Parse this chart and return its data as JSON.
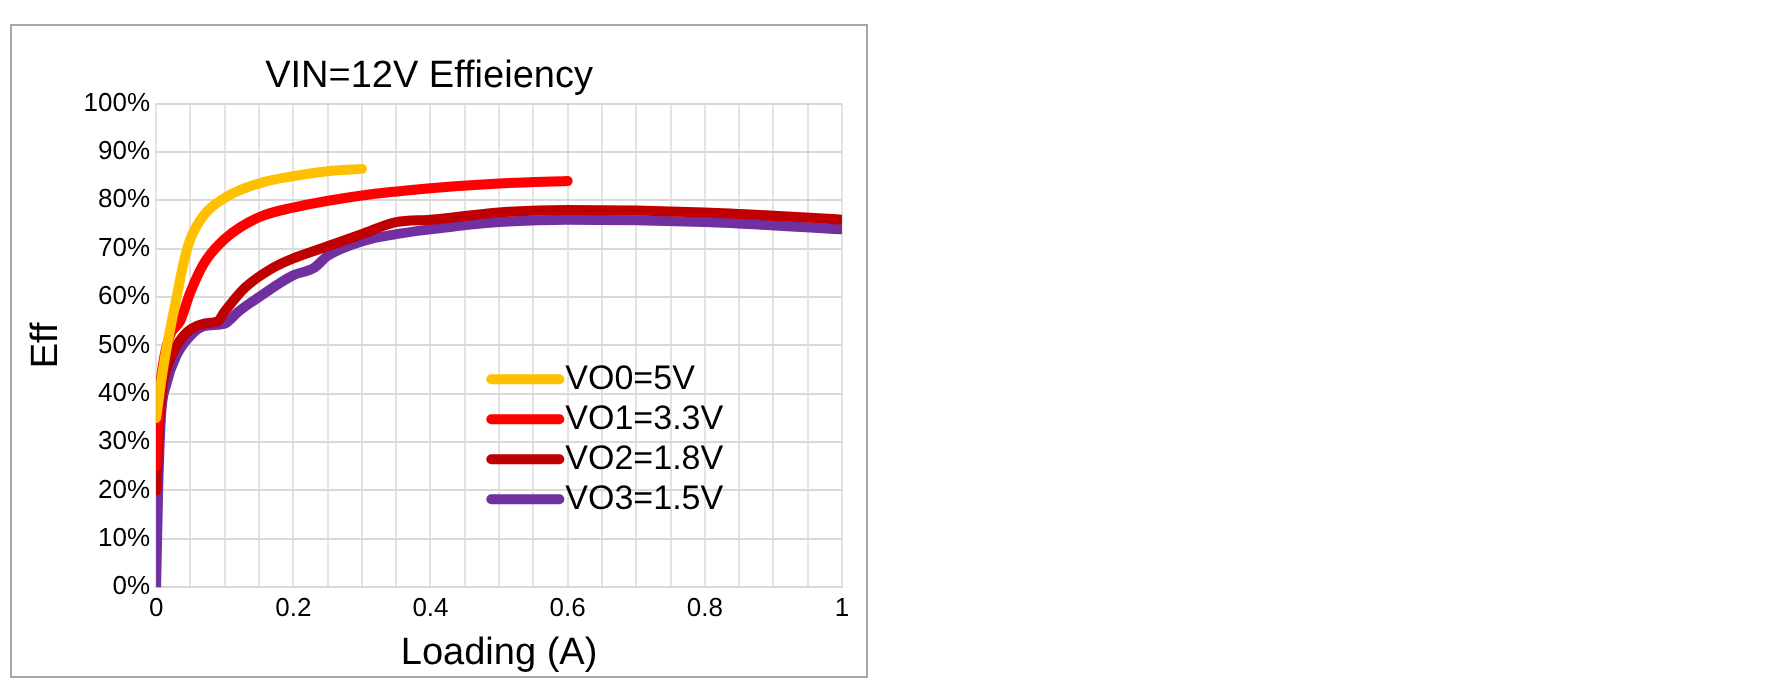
{
  "chart_data": {
    "type": "line",
    "title": "VIN=12V Effieiency",
    "xlabel": "Loading (A)",
    "ylabel": "Eff",
    "xlim": [
      0,
      1
    ],
    "xticks": [
      0,
      {
        "value": 0.05,
        "label": null
      },
      {
        "value": 0.1,
        "label": null
      },
      {
        "value": 0.15,
        "label": null
      },
      0.2,
      {
        "value": 0.25,
        "label": null
      },
      {
        "value": 0.3,
        "label": null
      },
      {
        "value": 0.35,
        "label": null
      },
      0.4,
      {
        "value": 0.45,
        "label": null
      },
      {
        "value": 0.5,
        "label": null
      },
      {
        "value": 0.55,
        "label": null
      },
      0.6,
      {
        "value": 0.65,
        "label": null
      },
      {
        "value": 0.7,
        "label": null
      },
      {
        "value": 0.75,
        "label": null
      },
      0.8,
      {
        "value": 0.85,
        "label": null
      },
      {
        "value": 0.9,
        "label": null
      },
      {
        "value": 0.95,
        "label": null
      },
      1
    ],
    "ylim": [
      0,
      100
    ],
    "yticks": [
      {
        "value": 0,
        "label": "0%"
      },
      {
        "value": 10,
        "label": "10%"
      },
      {
        "value": 20,
        "label": "20%"
      },
      {
        "value": 30,
        "label": "30%"
      },
      {
        "value": 40,
        "label": "40%"
      },
      {
        "value": 50,
        "label": "50%"
      },
      {
        "value": 60,
        "label": "60%"
      },
      {
        "value": 70,
        "label": "70%"
      },
      {
        "value": 80,
        "label": "80%"
      },
      {
        "value": 90,
        "label": "90%"
      },
      {
        "value": 100,
        "label": "100%"
      }
    ],
    "grid": true,
    "legend": "right",
    "marker": "none",
    "line_style": "solid",
    "series": [
      {
        "name": "VO0=5V",
        "color": "#ffc000",
        "x": [
          0,
          0.01,
          0.02,
          0.03,
          0.04,
          0.05,
          0.07,
          0.1,
          0.15,
          0.2,
          0.25,
          0.3
        ],
        "values": [
          35,
          45,
          53,
          60,
          67,
          72,
          77,
          80.5,
          83.5,
          85,
          86,
          86.5
        ]
      },
      {
        "name": "VO1=3.3V",
        "color": "#ff0000",
        "x": [
          0,
          0.005,
          0.01,
          0.02,
          0.035,
          0.05,
          0.07,
          0.1,
          0.15,
          0.2,
          0.3,
          0.4,
          0.5,
          0.6
        ],
        "values": [
          25,
          40,
          46,
          52,
          55,
          61,
          67,
          72,
          76.5,
          78.5,
          81,
          82.5,
          83.5,
          84
        ]
      },
      {
        "name": "VO2=1.8V",
        "color": "#c00000",
        "x": [
          0,
          0.005,
          0.01,
          0.02,
          0.04,
          0.07,
          0.09,
          0.1,
          0.13,
          0.17,
          0.2,
          0.25,
          0.3,
          0.35,
          0.4,
          0.5,
          0.6,
          0.8,
          1
        ],
        "values": [
          20,
          35,
          42,
          47,
          52,
          54.5,
          55,
          57,
          62,
          66,
          68,
          70.5,
          73,
          75.5,
          76,
          77.5,
          78,
          77.5,
          76
        ]
      },
      {
        "name": "VO3=1.5V",
        "color": "#7030a0",
        "x": [
          0,
          0.003,
          0.007,
          0.015,
          0.03,
          0.05,
          0.07,
          0.1,
          0.12,
          0.15,
          0.2,
          0.23,
          0.25,
          0.3,
          0.35,
          0.4,
          0.5,
          0.6,
          0.8,
          1
        ],
        "values": [
          0,
          20,
          35,
          42,
          48,
          52,
          54,
          54.5,
          57,
          60,
          64.5,
          66,
          68.5,
          71.5,
          73,
          74,
          75.5,
          76,
          75.5,
          74
        ]
      }
    ]
  }
}
